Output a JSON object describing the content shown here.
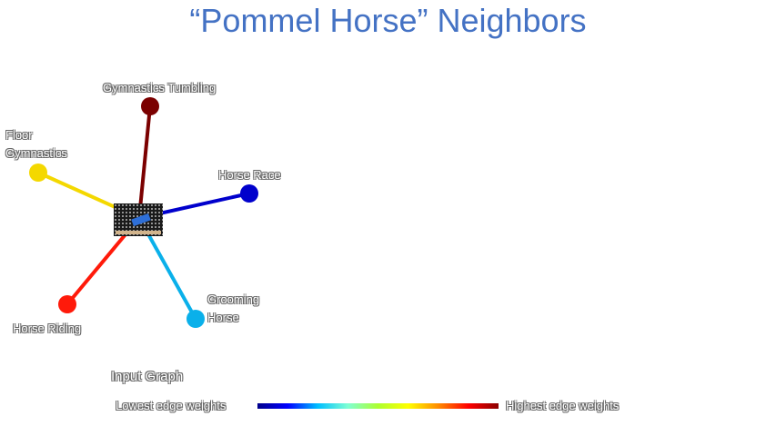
{
  "title": "“Pommel Horse” Neighbors",
  "center_node": {
    "icon": "pommel-horse-thumbnail"
  },
  "nodes": [
    {
      "id": "gymnastics-tumbling",
      "label": "Gymnastics Tumbling",
      "color": "#7b0000",
      "weight_rank": 1
    },
    {
      "id": "floor-gymnastics",
      "label_lines": [
        "Floor",
        "Gymnastics"
      ],
      "color": "#f4d800",
      "weight_rank": 3
    },
    {
      "id": "horse-race",
      "label": "Horse Race",
      "color": "#0000cc",
      "weight_rank": 5
    },
    {
      "id": "horse-riding",
      "label": "Horse Riding",
      "color": "#ff1a0a",
      "weight_rank": 2
    },
    {
      "id": "grooming-horse",
      "label_lines": [
        "Grooming",
        "Horse"
      ],
      "color": "#0ab0ea",
      "weight_rank": 4
    }
  ],
  "section_label": "Input Graph",
  "legend": {
    "low": "Lowest edge weights",
    "high": "Highest edge weights",
    "gradient": [
      "#00008b",
      "#0000ff",
      "#00bfff",
      "#7fffd4",
      "#adff2f",
      "#ffff00",
      "#ff8c00",
      "#ff0000",
      "#8b0000"
    ]
  }
}
